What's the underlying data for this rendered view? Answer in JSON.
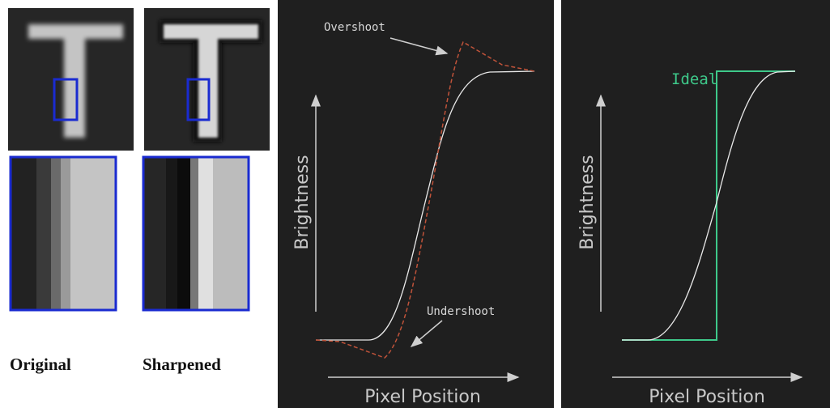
{
  "thumbnails": {
    "original_label": "Original",
    "sharpened_label": "Sharpened"
  },
  "sharpening_graph": {
    "overshoot": "Overshoot",
    "undershoot": "Undershoot",
    "y_axis": "Brightness",
    "x_axis": "Pixel Position"
  },
  "ideal_graph": {
    "ideal": "Ideal",
    "y_axis": "Brightness",
    "x_axis": "Pixel Position"
  }
}
